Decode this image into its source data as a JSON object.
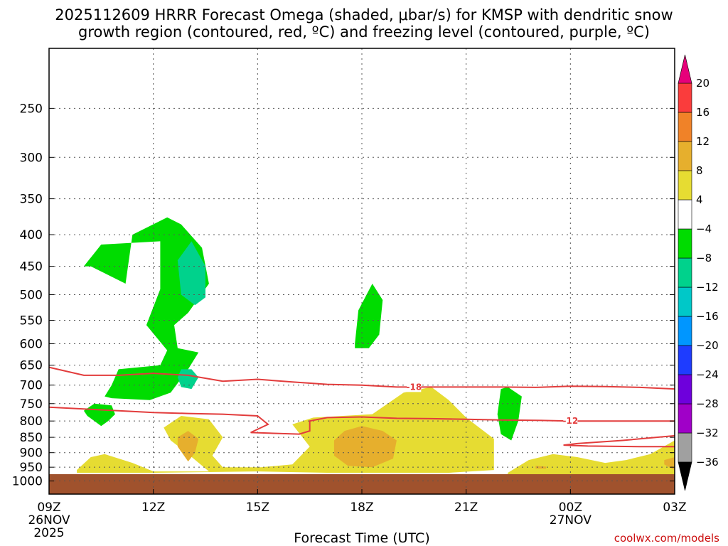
{
  "title": {
    "line1": "2025112609 HRRR Forecast Omega (shaded, μbar/s) for KMSP with dendritic snow",
    "line2": "growth region (contoured, red, ºC) and freezing level (contoured, purple, ºC)"
  },
  "credit": "coolwx.com/models",
  "chart_data": {
    "type": "heatmap",
    "title": "2025112609 HRRR Forecast Omega (shaded, μbar/s) for KMSP with dendritic snow growth region (contoured, red, ºC) and freezing level (contoured, purple, ºC)",
    "xlabel": "Forecast Time (UTC)",
    "ylabel": "",
    "y_scale": "log",
    "y_inverted": true,
    "ylim": [
      1050,
      200
    ],
    "xlim": [
      0,
      18
    ],
    "x_units": "hours after 2025-11-26 09Z",
    "grid": true,
    "x_ticks": [
      {
        "x": 0,
        "label": "09Z",
        "date": "26NOV",
        "year": "2025"
      },
      {
        "x": 3,
        "label": "12Z"
      },
      {
        "x": 6,
        "label": "15Z"
      },
      {
        "x": 9,
        "label": "18Z"
      },
      {
        "x": 12,
        "label": "21Z"
      },
      {
        "x": 15,
        "label": "00Z",
        "date": "27NOV"
      },
      {
        "x": 18,
        "label": "03Z"
      }
    ],
    "y_ticks": [
      250,
      300,
      350,
      400,
      450,
      500,
      550,
      600,
      650,
      700,
      750,
      800,
      850,
      900,
      950,
      1000
    ],
    "colorbar": {
      "levels": [
        -36,
        -32,
        -28,
        -24,
        -20,
        -16,
        -12,
        -8,
        -4,
        4,
        8,
        12,
        16,
        20
      ],
      "colors": [
        "#000000",
        "#a0a0a0",
        "#a000c8",
        "#6e00dc",
        "#1e3cff",
        "#0096ff",
        "#00c8c8",
        "#00d28c",
        "#00dc00",
        "#ffffff",
        "#e6dc32",
        "#e6af2d",
        "#f08228",
        "#fa3c3c",
        "#e6007a"
      ],
      "extend": "both"
    },
    "shaded_regions": [
      {
        "value_range": [
          -8,
          -4
        ],
        "color": "#00dc00",
        "polygon": [
          [
            1.0,
            450
          ],
          [
            1.5,
            415
          ],
          [
            3.2,
            410
          ],
          [
            3.2,
            490
          ],
          [
            2.8,
            560
          ],
          [
            3.4,
            615
          ],
          [
            3.2,
            650
          ],
          [
            2.0,
            660
          ],
          [
            1.8,
            700
          ],
          [
            1.6,
            730
          ],
          [
            1.8,
            735
          ],
          [
            2.9,
            740
          ],
          [
            3.5,
            720
          ],
          [
            4.0,
            660
          ],
          [
            4.3,
            620
          ],
          [
            3.7,
            610
          ],
          [
            3.6,
            560
          ],
          [
            4.0,
            535
          ],
          [
            4.6,
            480
          ],
          [
            4.4,
            420
          ],
          [
            3.8,
            385
          ],
          [
            3.4,
            375
          ],
          [
            2.4,
            400
          ],
          [
            2.2,
            480
          ],
          [
            1.2,
            450
          ],
          [
            1.0,
            450
          ]
        ]
      },
      {
        "value_range": [
          -12,
          -8
        ],
        "color": "#00d28c",
        "polygon": [
          [
            3.7,
            440
          ],
          [
            4.1,
            410
          ],
          [
            4.5,
            450
          ],
          [
            4.5,
            505
          ],
          [
            4.2,
            520
          ],
          [
            3.8,
            500
          ],
          [
            3.7,
            440
          ]
        ]
      },
      {
        "value_range": [
          -12,
          -8
        ],
        "color": "#00d28c",
        "polygon": [
          [
            3.7,
            680
          ],
          [
            3.8,
            660
          ],
          [
            4.1,
            660
          ],
          [
            4.3,
            680
          ],
          [
            4.1,
            710
          ],
          [
            3.8,
            705
          ],
          [
            3.7,
            680
          ]
        ]
      },
      {
        "value_range": [
          -8,
          -4
        ],
        "color": "#00dc00",
        "polygon": [
          [
            8.8,
            600
          ],
          [
            8.9,
            530
          ],
          [
            9.3,
            480
          ],
          [
            9.6,
            510
          ],
          [
            9.5,
            580
          ],
          [
            9.2,
            610
          ],
          [
            8.8,
            610
          ],
          [
            8.8,
            600
          ]
        ]
      },
      {
        "value_range": [
          -8,
          -4
        ],
        "color": "#00dc00",
        "polygon": [
          [
            1.0,
            770
          ],
          [
            1.3,
            750
          ],
          [
            1.8,
            755
          ],
          [
            1.9,
            780
          ],
          [
            1.7,
            800
          ],
          [
            1.5,
            815
          ],
          [
            1.1,
            785
          ],
          [
            1.0,
            770
          ]
        ]
      },
      {
        "value_range": [
          -8,
          -4
        ],
        "color": "#00dc00",
        "polygon": [
          [
            13.0,
            710
          ],
          [
            13.2,
            705
          ],
          [
            13.6,
            730
          ],
          [
            13.5,
            800
          ],
          [
            13.3,
            860
          ],
          [
            13.0,
            840
          ],
          [
            12.9,
            780
          ],
          [
            13.0,
            710
          ]
        ]
      },
      {
        "value_range": [
          4,
          8
        ],
        "color": "#e6dc32",
        "polygon": [
          [
            0.8,
            960
          ],
          [
            1.2,
            915
          ],
          [
            1.6,
            905
          ],
          [
            2.4,
            935
          ],
          [
            3.0,
            965
          ],
          [
            4.6,
            965
          ],
          [
            3.9,
            895
          ],
          [
            3.5,
            860
          ],
          [
            3.3,
            820
          ],
          [
            3.8,
            785
          ],
          [
            4.6,
            795
          ],
          [
            5.0,
            850
          ],
          [
            4.7,
            910
          ],
          [
            5.0,
            950
          ],
          [
            6.1,
            950
          ],
          [
            7.0,
            940
          ],
          [
            7.5,
            880
          ],
          [
            7.0,
            810
          ],
          [
            7.6,
            790
          ],
          [
            9.3,
            780
          ],
          [
            10.2,
            720
          ],
          [
            11.0,
            705
          ],
          [
            11.5,
            740
          ],
          [
            12.0,
            790
          ],
          [
            12.8,
            855
          ],
          [
            12.8,
            960
          ],
          [
            11.5,
            970
          ],
          [
            8.0,
            970
          ],
          [
            6.0,
            965
          ],
          [
            3.0,
            970
          ],
          [
            0.8,
            970
          ],
          [
            0.8,
            960
          ]
        ]
      },
      {
        "value_range": [
          8,
          12
        ],
        "color": "#e6af2d",
        "polygon": [
          [
            3.7,
            850
          ],
          [
            4.0,
            830
          ],
          [
            4.3,
            855
          ],
          [
            4.2,
            900
          ],
          [
            4.0,
            930
          ],
          [
            3.7,
            880
          ],
          [
            3.7,
            850
          ]
        ]
      },
      {
        "value_range": [
          8,
          12
        ],
        "color": "#e6af2d",
        "polygon": [
          [
            8.2,
            860
          ],
          [
            8.5,
            830
          ],
          [
            9.0,
            815
          ],
          [
            9.6,
            830
          ],
          [
            10.0,
            860
          ],
          [
            9.9,
            920
          ],
          [
            9.3,
            950
          ],
          [
            8.6,
            945
          ],
          [
            8.2,
            910
          ],
          [
            8.2,
            860
          ]
        ]
      },
      {
        "value_range": [
          4,
          8
        ],
        "color": "#e6dc32",
        "polygon": [
          [
            13.2,
            970
          ],
          [
            13.8,
            925
          ],
          [
            14.5,
            905
          ],
          [
            15.2,
            915
          ],
          [
            16.0,
            935
          ],
          [
            16.6,
            925
          ],
          [
            17.3,
            905
          ],
          [
            18.0,
            860
          ],
          [
            18.0,
            975
          ],
          [
            13.2,
            975
          ],
          [
            13.2,
            970
          ]
        ]
      },
      {
        "value_range": [
          8,
          12
        ],
        "color": "#e6af2d",
        "polygon": [
          [
            14.0,
            945
          ],
          [
            14.3,
            948
          ],
          [
            14.3,
            955
          ],
          [
            14.0,
            955
          ],
          [
            14.0,
            945
          ]
        ]
      },
      {
        "value_range": [
          8,
          12
        ],
        "color": "#e6af2d",
        "polygon": [
          [
            17.7,
            925
          ],
          [
            18.0,
            915
          ],
          [
            18.0,
            960
          ],
          [
            17.7,
            940
          ],
          [
            17.7,
            925
          ]
        ]
      }
    ],
    "ground_fill": {
      "color": "#a0522d",
      "from_pressure": 975,
      "to_pressure": 1050
    },
    "contours": [
      {
        "name": "-18",
        "color": "#e23c3c",
        "label_at": [
          10.5,
          705
        ],
        "points": [
          [
            0,
            655
          ],
          [
            1,
            675
          ],
          [
            2,
            675
          ],
          [
            3,
            670
          ],
          [
            4,
            675
          ],
          [
            5,
            690
          ],
          [
            6,
            685
          ],
          [
            7,
            692
          ],
          [
            8,
            698
          ],
          [
            9,
            700
          ],
          [
            10,
            705
          ],
          [
            11,
            705
          ],
          [
            12,
            705
          ],
          [
            13,
            705
          ],
          [
            14,
            706
          ],
          [
            15,
            703
          ],
          [
            16,
            704
          ],
          [
            17,
            706
          ],
          [
            18,
            710
          ]
        ]
      },
      {
        "name": "-12",
        "color": "#e23c3c",
        "label_at": [
          15.0,
          800
        ],
        "points": [
          [
            0,
            760
          ],
          [
            1,
            765
          ],
          [
            2,
            770
          ],
          [
            3,
            775
          ],
          [
            4,
            778
          ],
          [
            5,
            780
          ],
          [
            6,
            785
          ],
          [
            6.3,
            810
          ],
          [
            5.8,
            835
          ],
          [
            7.2,
            840
          ],
          [
            7.5,
            830
          ],
          [
            7.5,
            800
          ],
          [
            8.0,
            790
          ],
          [
            9.0,
            788
          ],
          [
            10,
            792
          ],
          [
            11,
            793
          ],
          [
            12,
            795
          ],
          [
            13,
            797
          ],
          [
            14,
            798
          ],
          [
            15,
            800
          ],
          [
            16,
            800
          ],
          [
            17,
            800
          ],
          [
            18,
            800
          ]
        ]
      },
      {
        "name": "-12b",
        "color": "#e23c3c",
        "points": [
          [
            18.0,
            845
          ],
          [
            16.5,
            860
          ],
          [
            15.2,
            870
          ],
          [
            14.8,
            875
          ],
          [
            15.5,
            878
          ],
          [
            17.0,
            880
          ],
          [
            18.0,
            880
          ]
        ]
      }
    ]
  }
}
